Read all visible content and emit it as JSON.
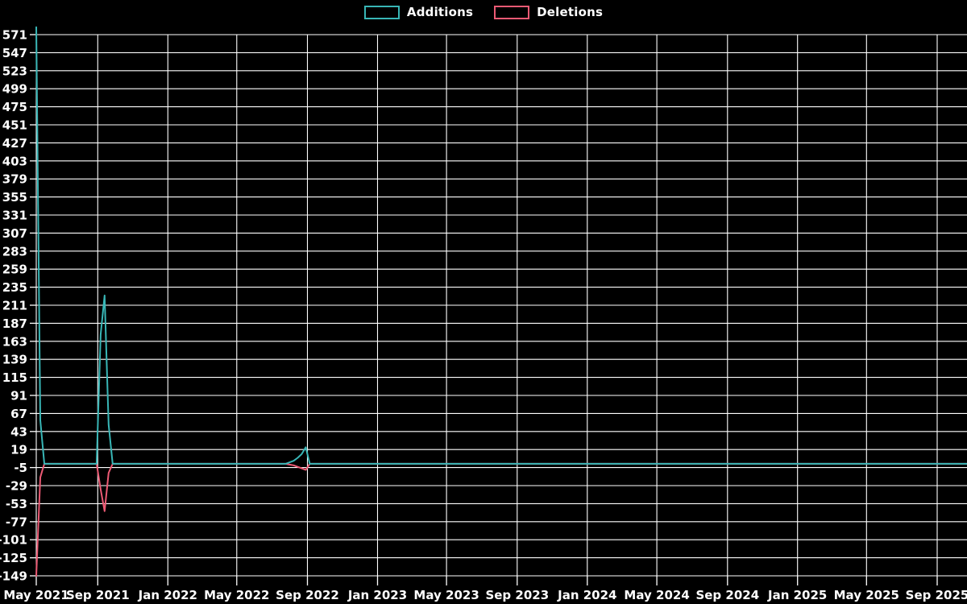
{
  "legend": {
    "additions_label": "Additions",
    "deletions_label": "Deletions"
  },
  "colors": {
    "additions": "#38b6b6",
    "deletions": "#ec5a74",
    "grid": "#ffffff",
    "background": "#000000",
    "text": "#ffffff"
  },
  "chart_data": {
    "type": "line",
    "title": "",
    "xlabel": "",
    "ylabel": "",
    "legend_position": "top-center",
    "grid": true,
    "x_axis": {
      "tick_labels": [
        "May 2021",
        "Sep 2021",
        "Jan 2022",
        "May 2022",
        "Sep 2022",
        "Jan 2023",
        "May 2023",
        "Sep 2023",
        "Jan 2024",
        "May 2024",
        "Sep 2024",
        "Jan 2025",
        "May 2025",
        "Sep 2025"
      ],
      "tick_dates": [
        "2021-05-17",
        "2021-09-01",
        "2022-01-01",
        "2022-05-01",
        "2022-09-01",
        "2023-01-01",
        "2023-05-01",
        "2023-09-01",
        "2024-01-01",
        "2024-05-01",
        "2024-09-01",
        "2025-01-01",
        "2025-05-01",
        "2025-09-01"
      ],
      "axis_start_date": "2021-05-17",
      "axis_end_date": "2025-10-23"
    },
    "y_axis": {
      "min": -149,
      "max": 571,
      "step": 24,
      "tick_labels": [
        571,
        547,
        523,
        499,
        475,
        451,
        427,
        403,
        379,
        355,
        331,
        307,
        283,
        259,
        235,
        211,
        187,
        163,
        139,
        115,
        91,
        67,
        43,
        19,
        -5,
        -29,
        -53,
        -77,
        -101,
        -125,
        -149
      ]
    },
    "series": [
      {
        "name": "Additions",
        "color_key": "additions",
        "points": [
          [
            "2021-05-17",
            581
          ],
          [
            "2021-05-24",
            58
          ],
          [
            "2021-05-31",
            0
          ],
          [
            "2021-08-30",
            0
          ],
          [
            "2021-09-06",
            172
          ],
          [
            "2021-09-13",
            224
          ],
          [
            "2021-09-20",
            52
          ],
          [
            "2021-09-27",
            0
          ],
          [
            "2022-07-25",
            0
          ],
          [
            "2022-08-01",
            2
          ],
          [
            "2022-08-08",
            4
          ],
          [
            "2022-08-15",
            8
          ],
          [
            "2022-08-22",
            13
          ],
          [
            "2022-08-29",
            22
          ],
          [
            "2022-09-05",
            0
          ],
          [
            "2025-10-23",
            0
          ]
        ]
      },
      {
        "name": "Deletions",
        "color_key": "deletions",
        "points": [
          [
            "2021-05-17",
            -149
          ],
          [
            "2021-05-24",
            -18
          ],
          [
            "2021-05-31",
            0
          ],
          [
            "2021-08-30",
            0
          ],
          [
            "2021-09-06",
            -34
          ],
          [
            "2021-09-13",
            -63
          ],
          [
            "2021-09-20",
            -12
          ],
          [
            "2021-09-27",
            0
          ],
          [
            "2022-07-25",
            0
          ],
          [
            "2022-08-01",
            -1
          ],
          [
            "2022-08-08",
            -2
          ],
          [
            "2022-08-15",
            -4
          ],
          [
            "2022-08-22",
            -6
          ],
          [
            "2022-08-29",
            -8
          ],
          [
            "2022-09-05",
            0
          ],
          [
            "2025-10-23",
            0
          ]
        ]
      }
    ]
  }
}
